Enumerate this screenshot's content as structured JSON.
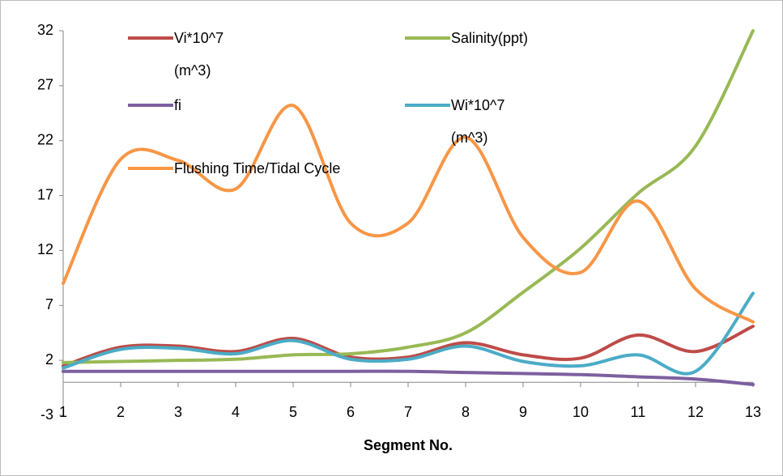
{
  "chart_data": {
    "type": "line",
    "x": [
      1,
      2,
      3,
      4,
      5,
      6,
      7,
      8,
      9,
      10,
      11,
      12,
      13
    ],
    "xlim": [
      1,
      13
    ],
    "xticks": [
      1,
      2,
      3,
      4,
      5,
      6,
      7,
      8,
      9,
      10,
      11,
      12,
      13
    ],
    "ylim": [
      -3,
      32
    ],
    "yticks": [
      -3,
      2,
      7,
      12,
      17,
      22,
      27,
      32
    ],
    "xlabel": "Segment No.",
    "smooth": true,
    "series": [
      {
        "name": "Vi*10^7 (m^3)",
        "color": "#be4b48",
        "values": [
          1.5,
          3.2,
          3.3,
          2.8,
          4.0,
          2.3,
          2.3,
          3.6,
          2.5,
          2.2,
          4.3,
          2.8,
          5.1
        ]
      },
      {
        "name": "Salinity(ppt)",
        "color": "#98b954",
        "values": [
          1.8,
          1.9,
          2.0,
          2.1,
          2.5,
          2.6,
          3.2,
          4.5,
          8.2,
          12.2,
          17.2,
          21.5,
          32
        ]
      },
      {
        "name": "fi",
        "color": "#7d60a0",
        "values": [
          1.0,
          1.0,
          1.0,
          1.0,
          1.0,
          1.0,
          1.0,
          0.9,
          0.8,
          0.7,
          0.5,
          0.3,
          -0.2
        ]
      },
      {
        "name": "Wi*10^7 (m^3)",
        "color": "#4bacc6",
        "values": [
          1.3,
          3.0,
          3.1,
          2.6,
          3.8,
          2.1,
          2.1,
          3.3,
          1.9,
          1.5,
          2.5,
          1.0,
          8.1
        ]
      },
      {
        "name": "Flushing Time/Tidal Cycle",
        "color": "#f79646",
        "values": [
          9.0,
          20.3,
          20.2,
          17.6,
          25.2,
          14.5,
          14.5,
          22.3,
          13.2,
          10.0,
          16.5,
          8.5,
          5.5
        ]
      }
    ]
  }
}
